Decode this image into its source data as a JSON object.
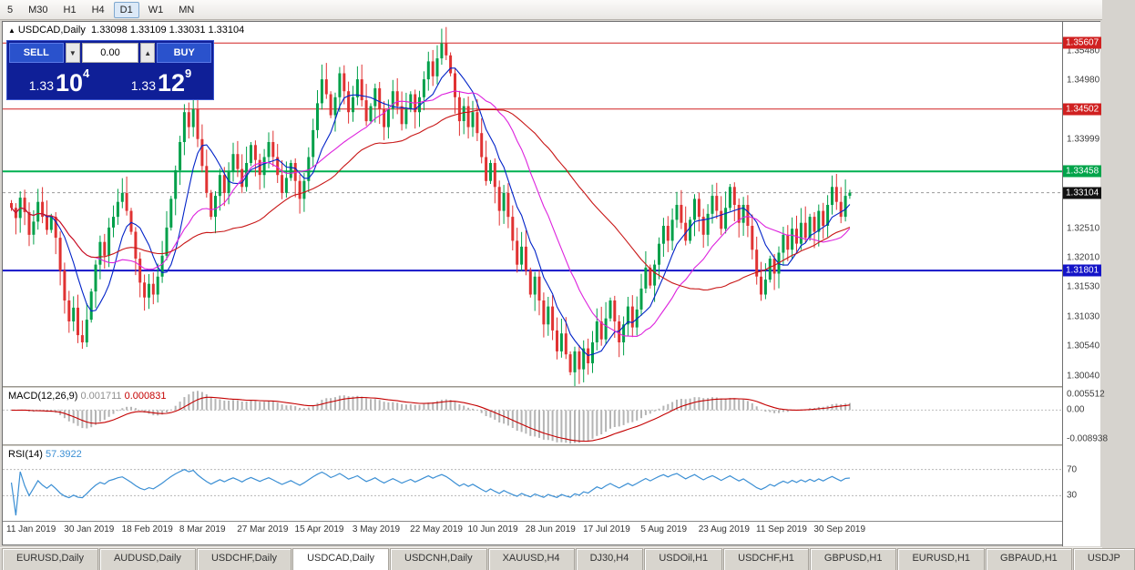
{
  "toolbar": {
    "periods": [
      "5",
      "M30",
      "H1",
      "H4",
      "D1",
      "W1",
      "MN"
    ],
    "active_period": "D1"
  },
  "chart_header": {
    "symbol": "USDCAD,Daily",
    "open": "1.33098",
    "high": "1.33109",
    "low": "1.33031",
    "close": "1.33104"
  },
  "trade_panel": {
    "sell_label": "SELL",
    "buy_label": "BUY",
    "lot_value": "0.00",
    "down_glyph": "▼",
    "up_glyph": "▲",
    "sell_price": {
      "base": "1.33",
      "pips": "10",
      "pipette": "4"
    },
    "buy_price": {
      "base": "1.33",
      "pips": "12",
      "pipette": "9"
    }
  },
  "price_axis": {
    "ticks": [
      {
        "label": "1.35480",
        "price": 1.3548
      },
      {
        "label": "1.34980",
        "price": 1.3498
      },
      {
        "label": "1.33999",
        "price": 1.33999
      },
      {
        "label": "1.32510",
        "price": 1.3251
      },
      {
        "label": "1.32010",
        "price": 1.3201
      },
      {
        "label": "1.31530",
        "price": 1.3153
      },
      {
        "label": "1.31030",
        "price": 1.3103
      },
      {
        "label": "1.30540",
        "price": 1.3054
      },
      {
        "label": "1.30040",
        "price": 1.3004
      }
    ],
    "badges": [
      {
        "label": "1.35607",
        "price": 1.35607,
        "bg": "#d02020"
      },
      {
        "label": "1.34502",
        "price": 1.34502,
        "bg": "#d02020"
      },
      {
        "label": "1.33458",
        "price": 1.33458,
        "bg": "#00a44a"
      },
      {
        "label": "1.33104",
        "price": 1.33104,
        "bg": "#111111"
      },
      {
        "label": "1.31801",
        "price": 1.31801,
        "bg": "#1414c8"
      }
    ]
  },
  "macd_panel": {
    "name": "MACD(12,26,9)",
    "value_main": "0.001711",
    "value_signal": "0.000831",
    "axis_top": "0.005512",
    "axis_zero": "0.00",
    "axis_bottom": "-0.008938"
  },
  "rsi_panel": {
    "name": "RSI(14)",
    "value": "57.3922",
    "axis_upper": "70",
    "axis_lower": "30"
  },
  "date_axis": [
    "11 Jan 2019",
    "30 Jan 2019",
    "18 Feb 2019",
    "8 Mar 2019",
    "27 Mar 2019",
    "15 Apr 2019",
    "3 May 2019",
    "22 May 2019",
    "10 Jun 2019",
    "28 Jun 2019",
    "17 Jul 2019",
    "5 Aug 2019",
    "23 Aug 2019",
    "11 Sep 2019",
    "30 Sep 2019"
  ],
  "tabs": {
    "labels": [
      "EURUSD,Daily",
      "AUDUSD,Daily",
      "USDCHF,Daily",
      "USDCAD,Daily",
      "USDCNH,Daily",
      "XAUUSD,H4",
      "DJ30,H4",
      "USDOil,H1",
      "USDCHF,H1",
      "GBPUSD,H1",
      "EURUSD,H1",
      "GBPAUD,H1",
      "USDJP"
    ],
    "active": "USDCAD,Daily"
  },
  "chart_data": {
    "type": "candlestick",
    "symbol": "USDCAD",
    "timeframe": "Daily",
    "view": {
      "price_max": 1.359,
      "price_min": 1.2993
    },
    "current_price": 1.33104,
    "levels": [
      {
        "price": 1.35607,
        "color": "#d02020",
        "width": 1
      },
      {
        "price": 1.34502,
        "color": "#d02020",
        "width": 1
      },
      {
        "price": 1.33458,
        "color": "#00b050",
        "width": 2
      },
      {
        "price": 1.31801,
        "color": "#1414c8",
        "width": 2
      }
    ],
    "up_color": "#00a04a",
    "down_color": "#e03232",
    "closes": [
      1.3285,
      1.3268,
      1.3302,
      1.3278,
      1.324,
      1.3262,
      1.3295,
      1.327,
      1.3248,
      1.327,
      1.3235,
      1.318,
      1.313,
      1.3095,
      1.3118,
      1.3072,
      1.306,
      1.3098,
      1.3145,
      1.319,
      1.3228,
      1.3205,
      1.3252,
      1.327,
      1.3295,
      1.331,
      1.328,
      1.3245,
      1.32,
      1.316,
      1.3135,
      1.3158,
      1.314,
      1.317,
      1.3205,
      1.3252,
      1.33,
      1.3348,
      1.3395,
      1.3445,
      1.342,
      1.345,
      1.34,
      1.3355,
      1.331,
      1.327,
      1.3305,
      1.334,
      1.331,
      1.3345,
      1.3375,
      1.335,
      1.332,
      1.336,
      1.339,
      1.3365,
      1.334,
      1.337,
      1.3395,
      1.337,
      1.334,
      1.331,
      1.3335,
      1.336,
      1.333,
      1.33,
      1.333,
      1.337,
      1.3415,
      1.346,
      1.35,
      1.3475,
      1.344,
      1.347,
      1.351,
      1.348,
      1.3445,
      1.347,
      1.35,
      1.3465,
      1.343,
      1.3455,
      1.3485,
      1.345,
      1.342,
      1.345,
      1.348,
      1.3455,
      1.3425,
      1.345,
      1.3475,
      1.3445,
      1.347,
      1.35,
      1.353,
      1.3505,
      1.3535,
      1.356,
      1.354,
      1.351,
      1.347,
      1.343,
      1.3455,
      1.342,
      1.3445,
      1.341,
      1.337,
      1.333,
      1.336,
      1.332,
      1.328,
      1.331,
      1.327,
      1.323,
      1.319,
      1.322,
      1.318,
      1.314,
      1.317,
      1.313,
      1.309,
      1.312,
      1.308,
      1.3045,
      1.3075,
      1.304,
      1.301,
      1.3045,
      1.3015,
      1.305,
      1.3025,
      1.306,
      1.3095,
      1.3065,
      1.31,
      1.313,
      1.3095,
      1.306,
      1.309,
      1.312,
      1.3085,
      1.3115,
      1.315,
      1.3185,
      1.3155,
      1.319,
      1.3225,
      1.3255,
      1.323,
      1.3265,
      1.329,
      1.326,
      1.323,
      1.3265,
      1.33,
      1.327,
      1.324,
      1.3275,
      1.3305,
      1.328,
      1.325,
      1.3285,
      1.332,
      1.329,
      1.326,
      1.329,
      1.3255,
      1.3215,
      1.317,
      1.314,
      1.3165,
      1.32,
      1.3175,
      1.321,
      1.324,
      1.3215,
      1.325,
      1.3225,
      1.326,
      1.3235,
      1.327,
      1.3245,
      1.328,
      1.3255,
      1.329,
      1.332,
      1.3295,
      1.327,
      1.3305,
      1.33104
    ],
    "moving_averages": [
      {
        "period": 8,
        "color": "#0022c8"
      },
      {
        "period": 20,
        "color": "#dd22dd"
      },
      {
        "period": 45,
        "color": "#c81616"
      }
    ],
    "macd": {
      "fast": 12,
      "slow": 26,
      "signal": 9,
      "scale_max": 0.005512,
      "scale_min": -0.008938,
      "hist_color": "#b4b4b4",
      "signal_color": "#c40000"
    },
    "rsi": {
      "period": 14,
      "color": "#3b8fd4",
      "upper": 70,
      "lower": 30
    }
  }
}
